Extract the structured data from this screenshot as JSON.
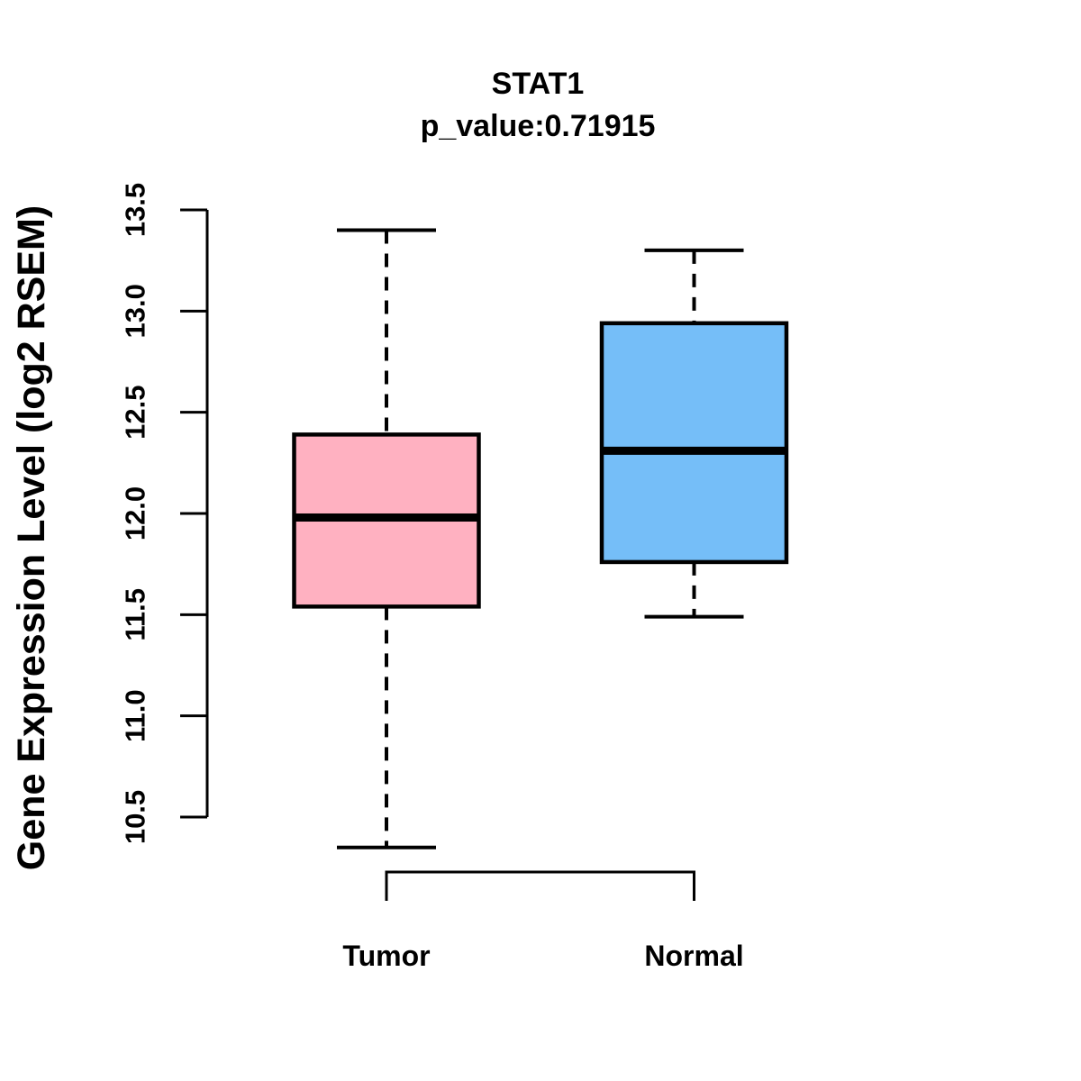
{
  "figure": {
    "background": "#ffffff",
    "text_color": "#000000"
  },
  "chart_data": {
    "type": "boxplot",
    "title": "STAT1",
    "subtitle": "p_value:0.71915",
    "ylabel": "Gene Expression Level (log2 RSEM)",
    "xlabel": "",
    "ylim": [
      10.5,
      13.5
    ],
    "ytick_labels": [
      "10.5",
      "11.0",
      "11.5",
      "12.0",
      "12.5",
      "13.0",
      "13.5"
    ],
    "categories": [
      "Tumor",
      "Normal"
    ],
    "series": [
      {
        "name": "Tumor",
        "box_color": "#ffb1c1",
        "lower_whisker": 10.35,
        "q1": 11.54,
        "median": 11.98,
        "q3": 12.39,
        "upper_whisker": 13.4
      },
      {
        "name": "Normal",
        "box_color": "#75bef8",
        "lower_whisker": 11.49,
        "q1": 11.76,
        "median": 12.31,
        "q3": 12.94,
        "upper_whisker": 13.3
      }
    ],
    "line_color": "#000000",
    "whisker_line_style": "dashed",
    "grid": false,
    "legend": "none"
  }
}
